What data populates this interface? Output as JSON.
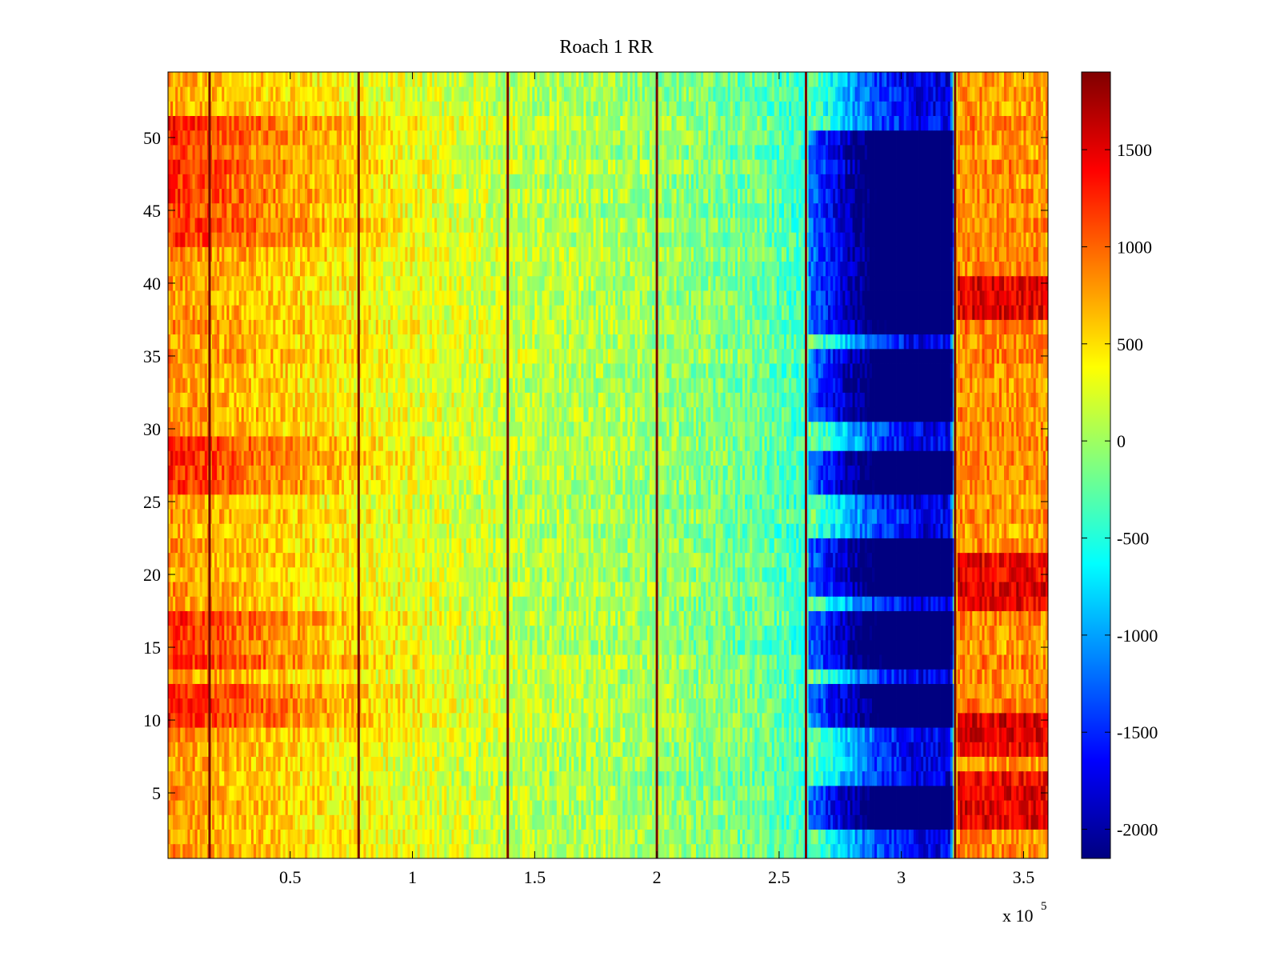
{
  "chart_data": {
    "type": "heatmap",
    "title": "Roach 1 RR",
    "xlabel": "",
    "ylabel": "",
    "x_multiplier_label": {
      "base": "x 10",
      "exponent": "5"
    },
    "xlim": [
      0,
      3.6
    ],
    "ylim": [
      0.5,
      54.5
    ],
    "x_ticks": [
      0.5,
      1,
      1.5,
      2,
      2.5,
      3,
      3.5
    ],
    "x_tick_labels": [
      "0.5",
      "1",
      "1.5",
      "2",
      "2.5",
      "3",
      "3.5"
    ],
    "y_ticks": [
      5,
      10,
      15,
      20,
      25,
      30,
      35,
      40,
      45,
      50
    ],
    "y_tick_labels": [
      "5",
      "10",
      "15",
      "20",
      "25",
      "30",
      "35",
      "40",
      "45",
      "50"
    ],
    "rows": 54,
    "colormap": "jet",
    "colorbar": {
      "range": [
        -2150,
        1900
      ],
      "ticks": [
        1500,
        1000,
        500,
        0,
        -500,
        -1000,
        -1500,
        -2000
      ],
      "tick_labels": [
        "1500",
        "1000",
        "500",
        "0",
        "-500",
        "-1000",
        "-1500",
        "-2000"
      ],
      "position": "right"
    },
    "vertical_lines_x": [
      0.17,
      0.78,
      1.39,
      2.0,
      2.61,
      3.22
    ],
    "column_profile": [
      {
        "x": 0.0,
        "value": 800
      },
      {
        "x": 0.3,
        "value": 650
      },
      {
        "x": 0.6,
        "value": 480
      },
      {
        "x": 0.9,
        "value": 320
      },
      {
        "x": 1.2,
        "value": 220
      },
      {
        "x": 1.5,
        "value": 100
      },
      {
        "x": 1.8,
        "value": 40
      },
      {
        "x": 2.1,
        "value": -60
      },
      {
        "x": 2.4,
        "value": -200
      },
      {
        "x": 2.6,
        "value": -400
      },
      {
        "x": 2.75,
        "value": -1100
      },
      {
        "x": 2.9,
        "value": -1700
      },
      {
        "x": 3.05,
        "value": -2050
      },
      {
        "x": 3.2,
        "value": -2100
      },
      {
        "x": 3.23,
        "value": 1100
      },
      {
        "x": 3.6,
        "value": 1050
      }
    ],
    "dark_row_ranges_y": [
      [
        3,
        5
      ],
      [
        9.5,
        12.5
      ],
      [
        14,
        17.5
      ],
      [
        19,
        22.5
      ],
      [
        25.5,
        28.5
      ],
      [
        31,
        35
      ],
      [
        37,
        41
      ],
      [
        42,
        50.5
      ]
    ],
    "hot_row_ranges_y": [
      [
        9.5,
        12.5
      ],
      [
        14,
        17.5
      ],
      [
        26,
        29
      ],
      [
        43,
        51
      ]
    ],
    "right_hot_row_ranges_y": [
      [
        2.5,
        6
      ],
      [
        8,
        10.5
      ],
      [
        18,
        21.5
      ],
      [
        37.5,
        40.5
      ]
    ]
  }
}
